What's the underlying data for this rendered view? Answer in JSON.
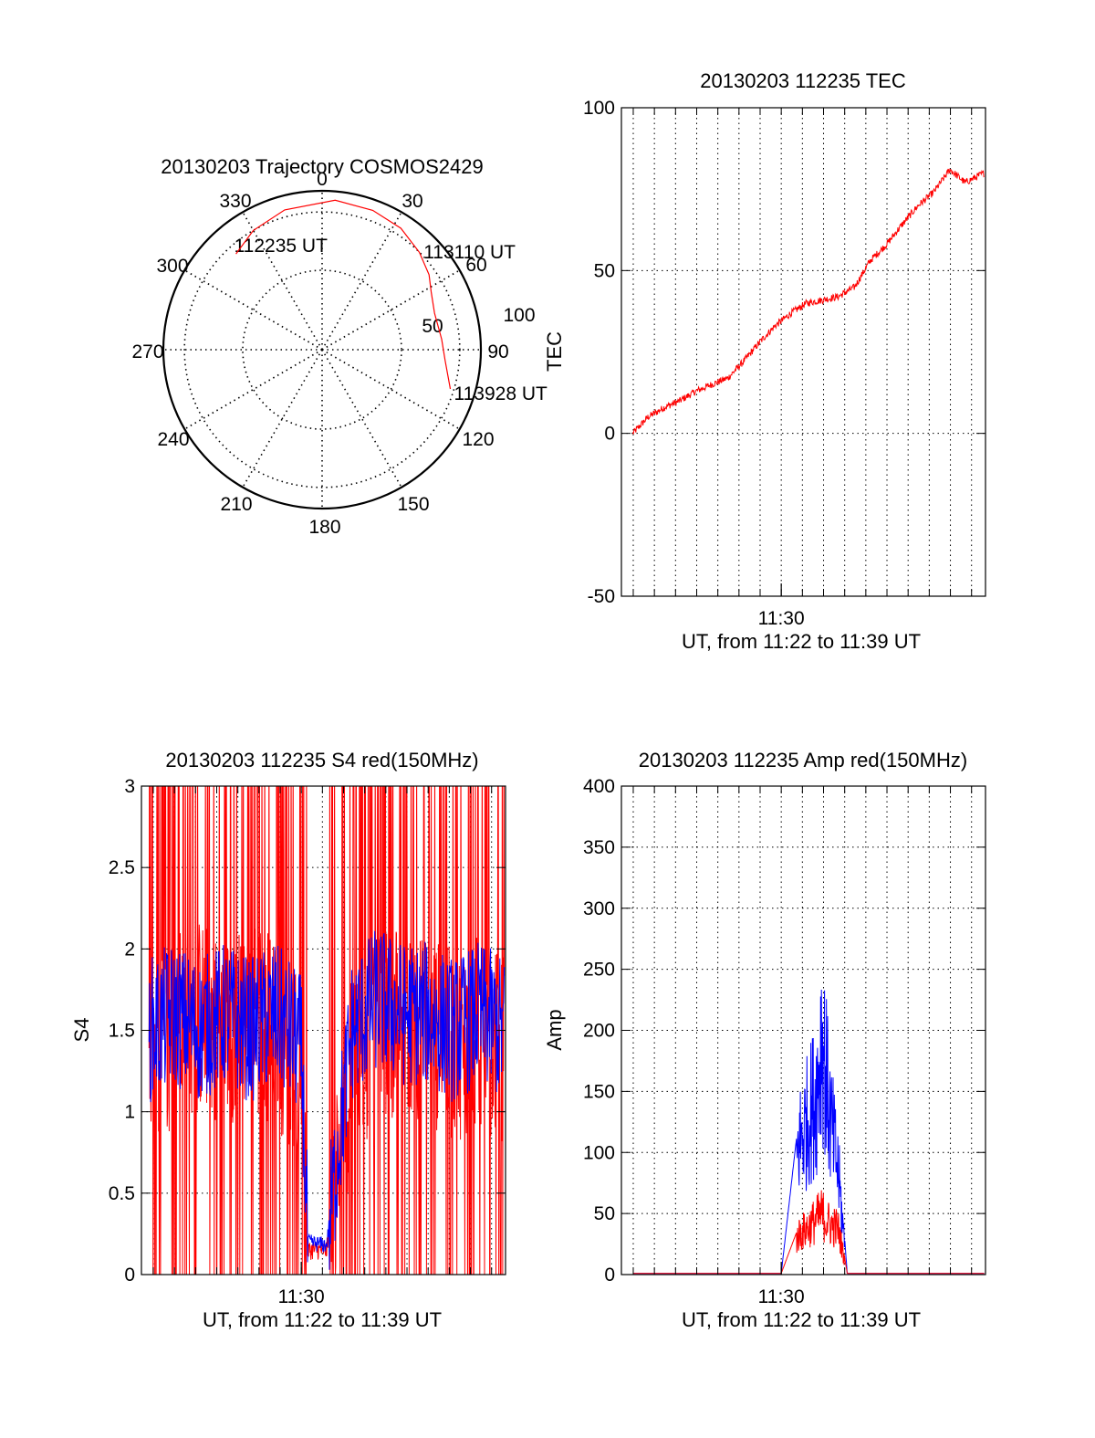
{
  "colors": {
    "red": "#ff0000",
    "blue": "#0000ff",
    "axis": "#000000"
  },
  "chart_data": [
    {
      "id": "polar",
      "type": "polar-trajectory",
      "title": "20130203 Trajectory COSMOS2429",
      "azimuth_labels": [
        "0",
        "30",
        "60",
        "90",
        "120",
        "150",
        "180",
        "210",
        "240",
        "270",
        "300",
        "330"
      ],
      "radius_labels": [
        "50",
        "100"
      ],
      "trajectory": [
        {
          "az": 318,
          "el": 17
        },
        {
          "az": 330,
          "el": 12
        },
        {
          "az": 345,
          "el": 8
        },
        {
          "az": 5,
          "el": 5
        },
        {
          "az": 20,
          "el": 6
        },
        {
          "az": 33,
          "el": 8
        },
        {
          "az": 45,
          "el": 12
        },
        {
          "az": 55,
          "el": 16
        },
        {
          "az": 62,
          "el": 20
        },
        {
          "az": 72,
          "el": 23
        },
        {
          "az": 85,
          "el": 22
        },
        {
          "az": 95,
          "el": 20
        },
        {
          "az": 107,
          "el": 14
        }
      ],
      "annotations": [
        {
          "text": "112235 UT",
          "az": 318,
          "el": 17
        },
        {
          "text": "113110 UT",
          "az": 55,
          "el": 16
        },
        {
          "text": "113928 UT",
          "az": 107,
          "el": 14
        }
      ]
    },
    {
      "id": "tec",
      "type": "line",
      "title": "20130203 112235 TEC",
      "xlabel": "UT, from 11:22 to 11:39 UT",
      "ylabel": "TEC",
      "xlim": [
        11.374,
        11.661
      ],
      "ylim": [
        -50,
        100
      ],
      "yticks": [
        -50,
        0,
        50,
        100
      ],
      "xticks": [
        {
          "value": 11.5,
          "label": "11:30"
        }
      ],
      "series": [
        {
          "color": "#ff0000",
          "x": [
            11.383,
            11.395,
            11.408,
            11.42,
            11.433,
            11.445,
            11.458,
            11.47,
            11.483,
            11.495,
            11.508,
            11.52,
            11.533,
            11.545,
            11.558,
            11.57,
            11.583,
            11.595,
            11.608,
            11.62,
            11.633,
            11.645,
            11.66
          ],
          "y": [
            0,
            5,
            8,
            10,
            13,
            15,
            17,
            22,
            28,
            33,
            37,
            40,
            41,
            42,
            45,
            53,
            58,
            64,
            70,
            74,
            81,
            77,
            80
          ]
        }
      ]
    },
    {
      "id": "s4",
      "type": "line",
      "title": "20130203 112235 S4 red(150MHz)",
      "xlabel": "UT, from 11:22 to 11:39 UT",
      "ylabel": "S4",
      "xlim": [
        11.374,
        11.661
      ],
      "ylim": [
        0,
        3
      ],
      "yticks": [
        0,
        0.5,
        1,
        1.5,
        2,
        2.5,
        3
      ],
      "xticks": [
        {
          "value": 11.5,
          "label": "11:30"
        }
      ],
      "series": [
        {
          "color": "#ff0000",
          "x": [
            11.38,
            11.4,
            11.42,
            11.44,
            11.46,
            11.48,
            11.5,
            11.505,
            11.52,
            11.54,
            11.56,
            11.58,
            11.6,
            11.62,
            11.64,
            11.66
          ],
          "y": [
            1.4,
            1.5,
            1.6,
            1.5,
            1.6,
            1.5,
            1.2,
            0.15,
            0.15,
            1.3,
            1.5,
            1.6,
            1.5,
            1.4,
            1.5,
            1.4
          ]
        },
        {
          "color": "#0000ff",
          "x": [
            11.38,
            11.4,
            11.42,
            11.44,
            11.46,
            11.48,
            11.5,
            11.505,
            11.52,
            11.54,
            11.56,
            11.58,
            11.6,
            11.62,
            11.64,
            11.66
          ],
          "y": [
            1.5,
            1.6,
            1.5,
            1.6,
            1.5,
            1.6,
            1.4,
            0.2,
            0.18,
            1.5,
            1.7,
            1.6,
            1.6,
            1.5,
            1.6,
            1.5
          ]
        }
      ]
    },
    {
      "id": "amp",
      "type": "line",
      "title": "20130203 112235 Amp red(150MHz)",
      "xlabel": "UT, from 11:22 to 11:39 UT",
      "ylabel": "Amp",
      "xlim": [
        11.374,
        11.661
      ],
      "ylim": [
        0,
        400
      ],
      "yticks": [
        0,
        50,
        100,
        150,
        200,
        250,
        300,
        350,
        400
      ],
      "xticks": [
        {
          "value": 11.5,
          "label": "11:30"
        }
      ],
      "series": [
        {
          "color": "#0000ff",
          "x": [
            11.383,
            11.5,
            11.514,
            11.52,
            11.528,
            11.532,
            11.538,
            11.545,
            11.552,
            11.66
          ],
          "y": [
            1,
            1,
            130,
            150,
            180,
            240,
            160,
            100,
            1,
            1
          ]
        },
        {
          "color": "#ff0000",
          "x": [
            11.383,
            11.5,
            11.514,
            11.52,
            11.528,
            11.532,
            11.538,
            11.545,
            11.552,
            11.66
          ],
          "y": [
            1,
            1,
            40,
            45,
            55,
            60,
            50,
            45,
            1,
            1
          ]
        }
      ]
    }
  ]
}
